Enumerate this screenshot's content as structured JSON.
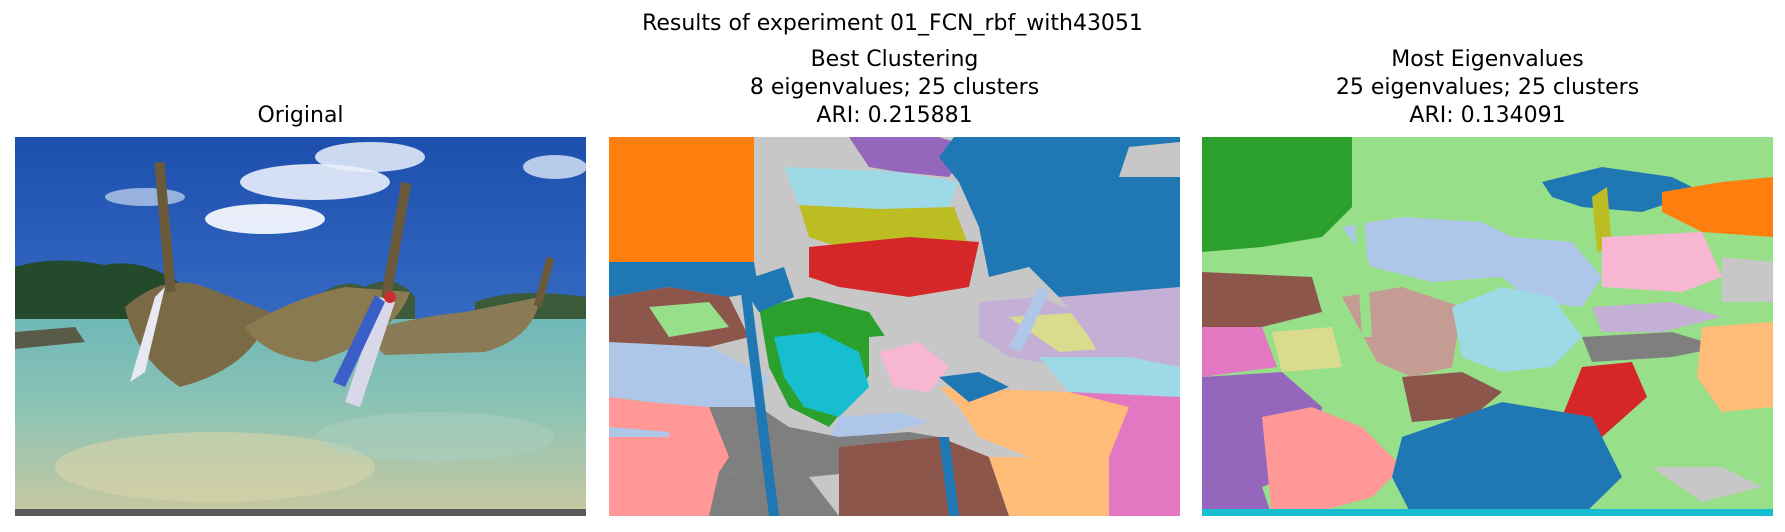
{
  "figure": {
    "suptitle": "Results of experiment 01_FCN_rbf_with43051"
  },
  "panels": [
    {
      "title_lines": [
        "Original"
      ]
    },
    {
      "title_lines": [
        "Best Clustering",
        "8 eigenvalues; 25 clusters",
        "ARI: 0.215881"
      ]
    },
    {
      "title_lines": [
        "Most Eigenvalues",
        "25 eigenvalues; 25 clusters",
        "ARI: 0.134091"
      ]
    }
  ],
  "palette": {
    "tab_blue": "#1f77b4",
    "tab_orange": "#ff7f0e",
    "tab_green": "#2ca02c",
    "tab_red": "#d62728",
    "tab_purple": "#9467bd",
    "tab_brown": "#8c564b",
    "tab_pink": "#e377c2",
    "tab_gray": "#7f7f7f",
    "tab_olive": "#bcbd22",
    "tab_cyan": "#17becf",
    "light_blue": "#aec7e8",
    "light_orange": "#ffbb78",
    "light_green": "#98df8a",
    "light_red": "#ff9896",
    "light_purple": "#c5b0d5",
    "light_brown": "#c49c94",
    "light_pink": "#f7b6d2",
    "light_gray": "#c7c7c7",
    "light_olive": "#dbdb8d",
    "light_cyan": "#9edae5"
  }
}
